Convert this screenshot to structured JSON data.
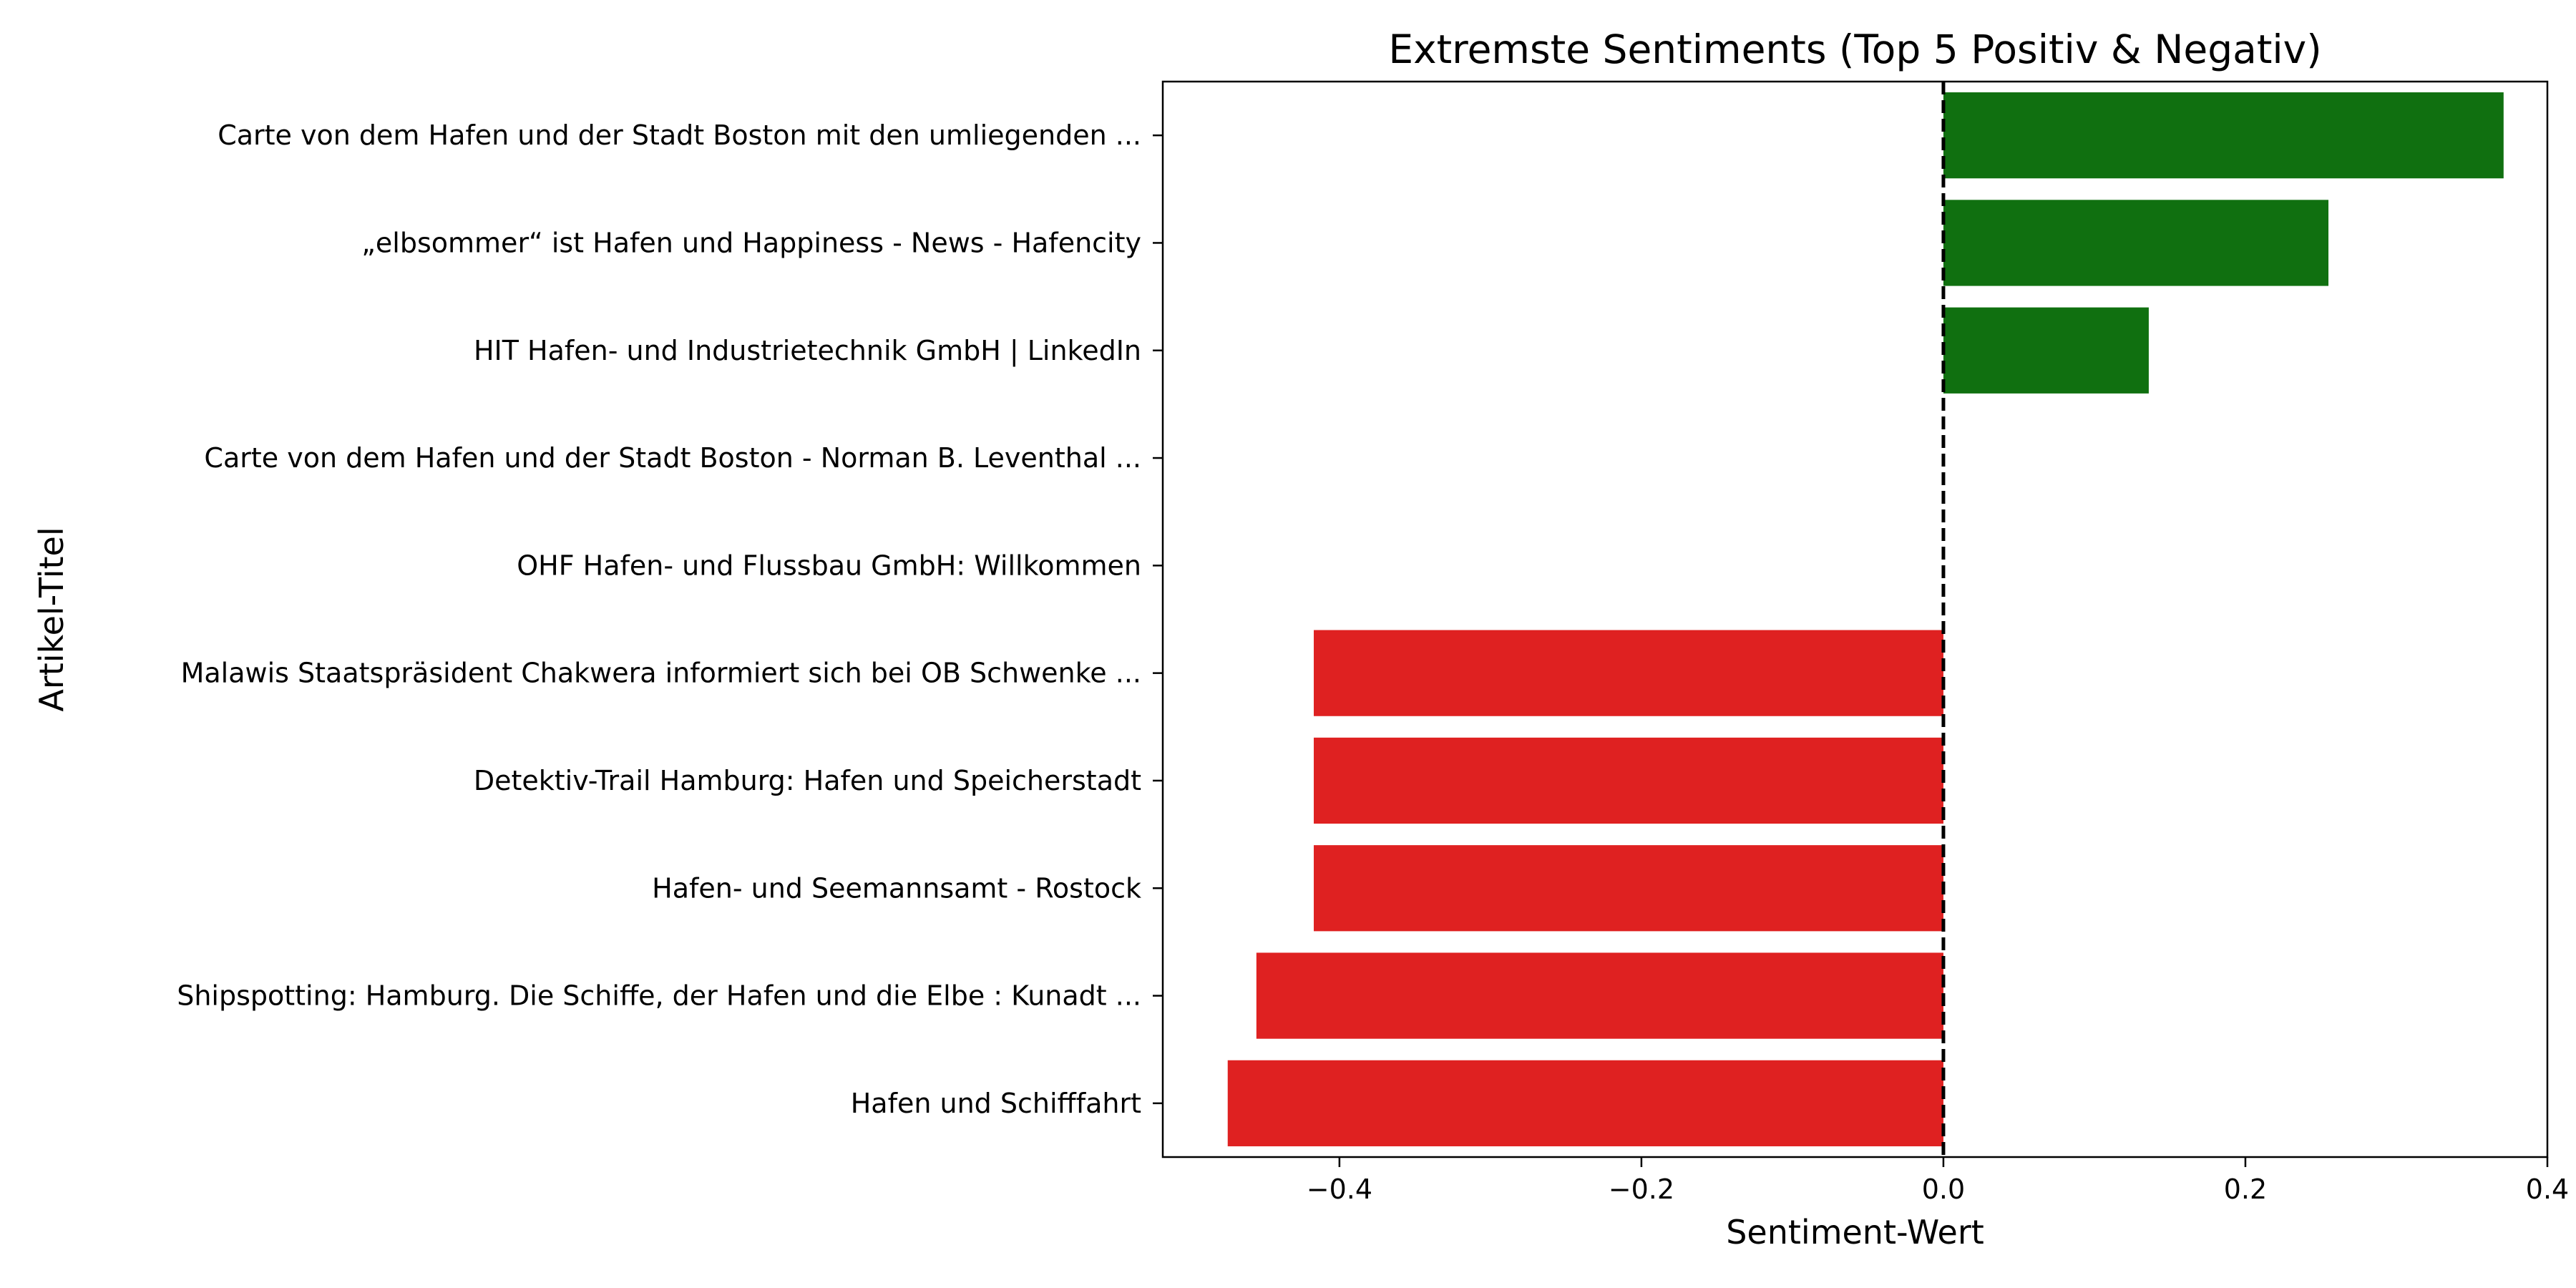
{
  "chart_data": {
    "type": "bar",
    "orientation": "horizontal",
    "title": "Extremste Sentiments (Top 5 Positiv & Negativ)",
    "xlabel": "Sentiment-Wert",
    "ylabel": "Artikel-Titel",
    "xlim": [
      -0.517,
      0.4
    ],
    "xticks": [
      -0.4,
      -0.2,
      0.0,
      0.2,
      0.4
    ],
    "xtick_labels": [
      "−0.4",
      "−0.2",
      "0.0",
      "0.2",
      "0.4"
    ],
    "reference_line": {
      "x": 0.0,
      "style": "dashed",
      "color": "#000000"
    },
    "grid": false,
    "categories": [
      "Carte von dem Hafen und der Stadt Boston mit den umliegenden ...",
      "„elbsommer“ ist Hafen und Happiness - News - Hafencity",
      "HIT Hafen- und Industrietechnik GmbH | LinkedIn",
      "Carte von dem Hafen und der Stadt Boston - Norman B. Leventhal ...",
      "OHF Hafen- und Flussbau GmbH: Willkommen",
      "Malawis Staatspräsident Chakwera informiert sich bei OB Schwenke ...",
      "Detektiv-Trail Hamburg: Hafen und Speicherstadt",
      "Hafen- und Seemannsamt - Rostock",
      "Shipspotting: Hamburg. Die Schiffe, der Hafen und die Elbe : Kunadt ...",
      "Hafen und Schifffahrt"
    ],
    "values": [
      0.371,
      0.255,
      0.136,
      0.0,
      0.0,
      -0.417,
      -0.417,
      -0.417,
      -0.455,
      -0.474
    ],
    "colors": {
      "positive": "#107010",
      "negative": "#df2121"
    }
  }
}
